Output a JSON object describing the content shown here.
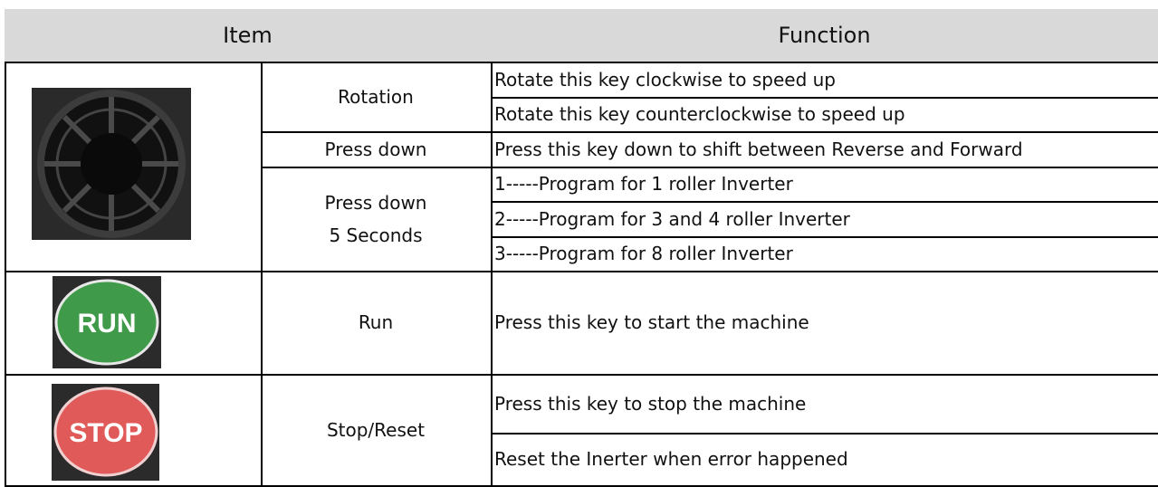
{
  "table": {
    "header": [
      "Item",
      "Function"
    ],
    "rows": [
      {
        "item": "Rotation",
        "functions": [
          "Rotate this key clockwise to speed up",
          "Rotate this key counterclockwise to speed up"
        ]
      },
      {
        "item": "Press down",
        "functions": [
          "Press this key down to shift between Reverse and Forward"
        ]
      },
      {
        "item": "Press down 5 Seconds",
        "functions": [
          "1-----Program for 1 roller Inverter",
          "2-----Program for 3 and 4 roller Inverter",
          "3-----Program for 8 roller Inverter"
        ]
      },
      {
        "item": "Run",
        "functions": [
          "Press this key to start the machine"
        ]
      },
      {
        "item": "Stop/Reset",
        "functions": [
          "Press this key to stop the machine",
          "Reset the Inerter when error happened"
        ]
      }
    ]
  },
  "icons": {
    "run": "RUN",
    "stop": "STOP"
  }
}
